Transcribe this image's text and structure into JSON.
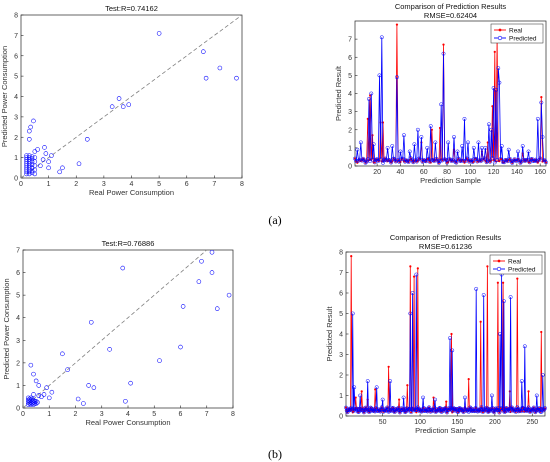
{
  "panel_labels": [
    "(a)",
    "(b)"
  ],
  "colors": {
    "real": "#ff0000",
    "predicted": "#0000ff",
    "scatter": "#0000ff",
    "refline": "#808080",
    "axis": "#262626"
  },
  "chart_data": [
    {
      "id": "a_scatter",
      "type": "scatter",
      "title": "Test:R=0.74162",
      "xlabel": "Real Power Consumption",
      "ylabel": "Predicted Power Consumption",
      "xlim": [
        0,
        8
      ],
      "ylim": [
        0,
        8
      ],
      "xticks": [
        0,
        1,
        2,
        3,
        4,
        5,
        6,
        7,
        8
      ],
      "yticks": [
        0,
        1,
        2,
        3,
        4,
        5,
        6,
        7,
        8
      ],
      "reference_line": "y=x dashed",
      "points": [
        [
          0.2,
          0.2
        ],
        [
          0.2,
          0.3
        ],
        [
          0.2,
          0.4
        ],
        [
          0.2,
          0.5
        ],
        [
          0.2,
          0.6
        ],
        [
          0.2,
          0.7
        ],
        [
          0.2,
          0.8
        ],
        [
          0.2,
          0.9
        ],
        [
          0.2,
          1.0
        ],
        [
          0.2,
          1.1
        ],
        [
          0.3,
          0.2
        ],
        [
          0.3,
          0.3
        ],
        [
          0.3,
          0.4
        ],
        [
          0.3,
          0.5
        ],
        [
          0.3,
          0.6
        ],
        [
          0.3,
          0.7
        ],
        [
          0.3,
          0.8
        ],
        [
          0.3,
          0.9
        ],
        [
          0.3,
          1.0
        ],
        [
          0.3,
          1.1
        ],
        [
          0.4,
          0.25
        ],
        [
          0.4,
          0.35
        ],
        [
          0.4,
          0.5
        ],
        [
          0.4,
          0.65
        ],
        [
          0.4,
          0.8
        ],
        [
          0.4,
          0.95
        ],
        [
          0.4,
          1.05
        ],
        [
          0.5,
          0.2
        ],
        [
          0.5,
          0.4
        ],
        [
          0.5,
          0.6
        ],
        [
          0.5,
          0.8
        ],
        [
          0.5,
          1.0
        ],
        [
          0.3,
          1.9
        ],
        [
          0.35,
          2.5
        ],
        [
          0.3,
          2.3
        ],
        [
          0.45,
          2.8
        ],
        [
          0.5,
          1.3
        ],
        [
          0.6,
          1.4
        ],
        [
          0.7,
          0.6
        ],
        [
          0.8,
          0.9
        ],
        [
          0.85,
          1.5
        ],
        [
          0.9,
          1.2
        ],
        [
          1.0,
          0.8
        ],
        [
          1.1,
          1.1
        ],
        [
          1.0,
          0.5
        ],
        [
          1.4,
          0.3
        ],
        [
          1.5,
          0.5
        ],
        [
          2.1,
          0.7
        ],
        [
          2.4,
          1.9
        ],
        [
          3.3,
          3.5
        ],
        [
          3.55,
          3.9
        ],
        [
          3.7,
          3.5
        ],
        [
          3.9,
          3.6
        ],
        [
          5.0,
          7.1
        ],
        [
          6.6,
          6.2
        ],
        [
          6.7,
          4.9
        ],
        [
          7.2,
          5.4
        ],
        [
          7.8,
          4.9
        ]
      ]
    },
    {
      "id": "a_line",
      "type": "line",
      "title": "Comparison of Prediction Results",
      "subtitle": "RMSE=0.62404",
      "xlabel": "Prediction Sample",
      "ylabel": "Predicted Result",
      "xlim": [
        1,
        165
      ],
      "ylim": [
        0,
        8
      ],
      "xticks": [
        20,
        40,
        60,
        80,
        100,
        120,
        140,
        160
      ],
      "yticks": [
        0,
        1,
        2,
        3,
        4,
        5,
        6,
        7
      ],
      "legend_position": "top-right",
      "baseline": 0.3,
      "series": [
        {
          "name": "Real",
          "spikes": [
            [
              12,
              2.6
            ],
            [
              14,
              3.9
            ],
            [
              16,
              1.7
            ],
            [
              23,
              2.4
            ],
            [
              25,
              2.4
            ],
            [
              37,
              7.8
            ],
            [
              58,
              1.3
            ],
            [
              67,
              2.0
            ],
            [
              74,
              2.1
            ],
            [
              77,
              6.7
            ],
            [
              86,
              0.9
            ],
            [
              110,
              0.8
            ],
            [
              115,
              1.3
            ],
            [
              119,
              3.3
            ],
            [
              121,
              6.3
            ],
            [
              123,
              7.2
            ],
            [
              145,
              0.7
            ],
            [
              161,
              3.8
            ]
          ]
        },
        {
          "name": "Predicted",
          "spikes": [
            [
              3,
              0.9
            ],
            [
              6,
              1.3
            ],
            [
              13,
              3.7
            ],
            [
              15,
              4.0
            ],
            [
              17,
              1.2
            ],
            [
              22,
              5.0
            ],
            [
              24,
              7.1
            ],
            [
              29,
              1.0
            ],
            [
              33,
              1.1
            ],
            [
              37,
              4.9
            ],
            [
              40,
              0.8
            ],
            [
              43,
              1.7
            ],
            [
              48,
              0.8
            ],
            [
              52,
              1.2
            ],
            [
              55,
              2.0
            ],
            [
              58,
              1.6
            ],
            [
              63,
              1.0
            ],
            [
              66,
              2.2
            ],
            [
              70,
              1.3
            ],
            [
              75,
              3.4
            ],
            [
              77,
              6.2
            ],
            [
              81,
              1.3
            ],
            [
              86,
              1.6
            ],
            [
              89,
              0.8
            ],
            [
              93,
              1.1
            ],
            [
              95,
              2.6
            ],
            [
              98,
              1.3
            ],
            [
              103,
              1.0
            ],
            [
              107,
              1.3
            ],
            [
              110,
              1.0
            ],
            [
              113,
              1.0
            ],
            [
              116,
              2.3
            ],
            [
              118,
              2.0
            ],
            [
              120,
              4.3
            ],
            [
              122,
              4.2
            ],
            [
              124,
              5.4
            ],
            [
              125,
              4.6
            ],
            [
              127,
              1.1
            ],
            [
              133,
              0.9
            ],
            [
              141,
              0.8
            ],
            [
              145,
              1.1
            ],
            [
              150,
              0.8
            ],
            [
              158,
              2.6
            ],
            [
              161,
              3.5
            ],
            [
              162,
              1.6
            ]
          ]
        }
      ]
    },
    {
      "id": "b_scatter",
      "type": "scatter",
      "title": "Test:R=0.76886",
      "xlabel": "Real Power Consumption",
      "ylabel": "Predicted Power Consumption",
      "xlim": [
        0,
        8
      ],
      "ylim": [
        0,
        7
      ],
      "xticks": [
        0,
        1,
        2,
        3,
        4,
        5,
        6,
        7,
        8
      ],
      "yticks": [
        0,
        1,
        2,
        3,
        4,
        5,
        6,
        7
      ],
      "reference_line": "y=x dashed",
      "points": [
        [
          0.2,
          0.15
        ],
        [
          0.2,
          0.25
        ],
        [
          0.2,
          0.35
        ],
        [
          0.2,
          0.45
        ],
        [
          0.25,
          0.2
        ],
        [
          0.25,
          0.3
        ],
        [
          0.25,
          0.4
        ],
        [
          0.3,
          0.15
        ],
        [
          0.3,
          0.25
        ],
        [
          0.3,
          0.35
        ],
        [
          0.3,
          0.45
        ],
        [
          0.35,
          0.2
        ],
        [
          0.35,
          0.3
        ],
        [
          0.35,
          0.4
        ],
        [
          0.4,
          0.15
        ],
        [
          0.4,
          0.25
        ],
        [
          0.4,
          0.35
        ],
        [
          0.45,
          0.2
        ],
        [
          0.45,
          0.3
        ],
        [
          0.5,
          0.2
        ],
        [
          0.5,
          0.3
        ],
        [
          0.55,
          0.25
        ],
        [
          0.3,
          1.9
        ],
        [
          0.4,
          1.5
        ],
        [
          0.5,
          1.2
        ],
        [
          0.6,
          1.0
        ],
        [
          0.4,
          0.6
        ],
        [
          0.7,
          0.5
        ],
        [
          0.8,
          0.6
        ],
        [
          0.9,
          0.9
        ],
        [
          1.0,
          0.45
        ],
        [
          1.1,
          0.7
        ],
        [
          0.6,
          0.55
        ],
        [
          1.5,
          2.4
        ],
        [
          1.7,
          1.7
        ],
        [
          2.1,
          0.4
        ],
        [
          2.3,
          0.2
        ],
        [
          2.5,
          1.0
        ],
        [
          2.6,
          3.8
        ],
        [
          2.7,
          0.9
        ],
        [
          3.3,
          2.6
        ],
        [
          3.8,
          6.2
        ],
        [
          3.9,
          0.3
        ],
        [
          4.1,
          1.1
        ],
        [
          5.2,
          2.1
        ],
        [
          6.0,
          2.7
        ],
        [
          6.1,
          4.5
        ],
        [
          6.7,
          5.6
        ],
        [
          6.8,
          6.5
        ],
        [
          7.2,
          6.0
        ],
        [
          7.2,
          6.9
        ],
        [
          7.4,
          4.4
        ],
        [
          7.85,
          5.0
        ]
      ]
    },
    {
      "id": "b_line",
      "type": "line",
      "title": "Comparison of Prediction Results",
      "subtitle": "RMSE=0.61236",
      "xlabel": "Prediction Sample",
      "ylabel": "Predicted Result",
      "xlim": [
        1,
        267
      ],
      "ylim": [
        0,
        8
      ],
      "xticks": [
        50,
        100,
        150,
        200,
        250
      ],
      "yticks": [
        0,
        1,
        2,
        3,
        4,
        5,
        6,
        7,
        8
      ],
      "legend_position": "top-right",
      "baseline": 0.3,
      "series": [
        {
          "name": "Real",
          "spikes": [
            [
              8,
              7.8
            ],
            [
              14,
              0.9
            ],
            [
              22,
              1.2
            ],
            [
              30,
              0.8
            ],
            [
              40,
              1.3
            ],
            [
              58,
              2.4
            ],
            [
              72,
              0.8
            ],
            [
              83,
              1.5
            ],
            [
              87,
              7.3
            ],
            [
              92,
              6.8
            ],
            [
              97,
              7.2
            ],
            [
              118,
              0.9
            ],
            [
              135,
              0.7
            ],
            [
              142,
              4.0
            ],
            [
              165,
              1.8
            ],
            [
              181,
              4.6
            ],
            [
              190,
              7.3
            ],
            [
              204,
              6.5
            ],
            [
              211,
              6.5
            ],
            [
              220,
              1.2
            ],
            [
              230,
              6.7
            ],
            [
              245,
              1.2
            ],
            [
              262,
              4.1
            ]
          ]
        },
        {
          "name": "Predicted",
          "spikes": [
            [
              10,
              5.0
            ],
            [
              12,
              1.4
            ],
            [
              20,
              1.0
            ],
            [
              30,
              1.7
            ],
            [
              42,
              1.4
            ],
            [
              50,
              0.8
            ],
            [
              60,
              1.7
            ],
            [
              78,
              0.9
            ],
            [
              87,
              5.0
            ],
            [
              90,
              6.0
            ],
            [
              95,
              6.9
            ],
            [
              104,
              0.9
            ],
            [
              120,
              0.8
            ],
            [
              140,
              3.8
            ],
            [
              143,
              3.2
            ],
            [
              160,
              0.9
            ],
            [
              175,
              6.2
            ],
            [
              185,
              5.9
            ],
            [
              196,
              1.0
            ],
            [
              207,
              4.0
            ],
            [
              209,
              6.9
            ],
            [
              212,
              5.6
            ],
            [
              221,
              5.8
            ],
            [
              236,
              1.7
            ],
            [
              240,
              3.4
            ],
            [
              256,
              1.0
            ],
            [
              264,
              2.0
            ]
          ]
        }
      ]
    }
  ]
}
